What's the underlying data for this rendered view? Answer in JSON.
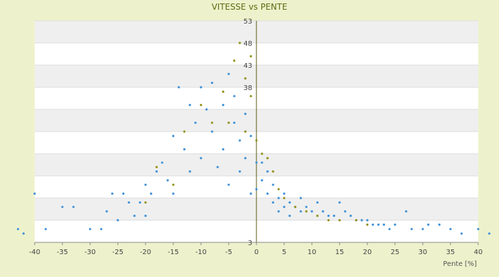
{
  "chart_data": {
    "type": "scatter",
    "title": "VITESSE vs PENTE",
    "xlabel": "Pente [%]",
    "ylabel": "",
    "xlim": [
      -40,
      40
    ],
    "ylim": [
      3,
      53
    ],
    "x_ticks": [
      "-40",
      "-35",
      "-30",
      "-25",
      "-20",
      "-15",
      "-10",
      "-5",
      "0",
      "5",
      "10",
      "15",
      "20",
      "25",
      "30",
      "35",
      "40"
    ],
    "y_ticks": [
      "3",
      "8",
      "13",
      "18",
      "23",
      "28",
      "33",
      "38",
      "43",
      "48",
      "53"
    ],
    "y_tick_labels_shown": [
      "3",
      "38",
      "43",
      "48",
      "53"
    ],
    "series": [
      {
        "color": "#3a8fd8",
        "points": [
          [
            -43,
            6
          ],
          [
            -42,
            5
          ],
          [
            -40,
            14
          ],
          [
            -38,
            6
          ],
          [
            -35,
            11
          ],
          [
            -33,
            11
          ],
          [
            -30,
            6
          ],
          [
            -28,
            6
          ],
          [
            -27,
            10
          ],
          [
            -26,
            14
          ],
          [
            -25,
            8
          ],
          [
            -24,
            14
          ],
          [
            -23,
            12
          ],
          [
            -22,
            9
          ],
          [
            -21,
            12
          ],
          [
            -20,
            16
          ],
          [
            -20,
            9
          ],
          [
            -19,
            14
          ],
          [
            -18,
            19
          ],
          [
            -17,
            21
          ],
          [
            -16,
            17
          ],
          [
            -15,
            27
          ],
          [
            -15,
            14
          ],
          [
            -14,
            38
          ],
          [
            -13,
            24
          ],
          [
            -12,
            19
          ],
          [
            -12,
            34
          ],
          [
            -11,
            30
          ],
          [
            -10,
            38
          ],
          [
            -10,
            22
          ],
          [
            -9,
            33
          ],
          [
            -8,
            39
          ],
          [
            -8,
            28
          ],
          [
            -7,
            20
          ],
          [
            -6,
            34
          ],
          [
            -6,
            24
          ],
          [
            -5,
            41
          ],
          [
            -5,
            16
          ],
          [
            -4,
            36
          ],
          [
            -4,
            30
          ],
          [
            -3,
            26
          ],
          [
            -3,
            19
          ],
          [
            -2,
            32
          ],
          [
            -2,
            22
          ],
          [
            -1,
            27
          ],
          [
            -1,
            14
          ],
          [
            0,
            21
          ],
          [
            0,
            15
          ],
          [
            1,
            21
          ],
          [
            1,
            17
          ],
          [
            2,
            19
          ],
          [
            2,
            14
          ],
          [
            3,
            16
          ],
          [
            3,
            12
          ],
          [
            4,
            13
          ],
          [
            4,
            10
          ],
          [
            5,
            14
          ],
          [
            5,
            11
          ],
          [
            6,
            12
          ],
          [
            6,
            9
          ],
          [
            7,
            11
          ],
          [
            8,
            13
          ],
          [
            8,
            10
          ],
          [
            9,
            11
          ],
          [
            10,
            10
          ],
          [
            11,
            12
          ],
          [
            12,
            10
          ],
          [
            13,
            9
          ],
          [
            14,
            9
          ],
          [
            15,
            12
          ],
          [
            16,
            10
          ],
          [
            17,
            9
          ],
          [
            18,
            8
          ],
          [
            19,
            8
          ],
          [
            20,
            8
          ],
          [
            21,
            7
          ],
          [
            22,
            7
          ],
          [
            23,
            7
          ],
          [
            24,
            6
          ],
          [
            25,
            7
          ],
          [
            27,
            10
          ],
          [
            28,
            6
          ],
          [
            30,
            6
          ],
          [
            31,
            7
          ],
          [
            33,
            7
          ],
          [
            35,
            6
          ],
          [
            37,
            5
          ],
          [
            40,
            6
          ],
          [
            42,
            5
          ]
        ]
      },
      {
        "color": "#8f8f10",
        "points": [
          [
            -20,
            12
          ],
          [
            -18,
            20
          ],
          [
            -15,
            16
          ],
          [
            -13,
            28
          ],
          [
            -10,
            34
          ],
          [
            -8,
            30
          ],
          [
            -6,
            37
          ],
          [
            -5,
            30
          ],
          [
            -4,
            44
          ],
          [
            -3,
            48
          ],
          [
            -2,
            40
          ],
          [
            -2,
            28
          ],
          [
            -1,
            45
          ],
          [
            -1,
            36
          ],
          [
            0,
            26
          ],
          [
            1,
            23
          ],
          [
            2,
            22
          ],
          [
            3,
            19
          ],
          [
            4,
            15
          ],
          [
            5,
            13
          ],
          [
            7,
            11
          ],
          [
            9,
            10
          ],
          [
            11,
            9
          ],
          [
            13,
            8
          ],
          [
            15,
            8
          ],
          [
            18,
            8
          ],
          [
            20,
            7
          ]
        ]
      }
    ]
  }
}
